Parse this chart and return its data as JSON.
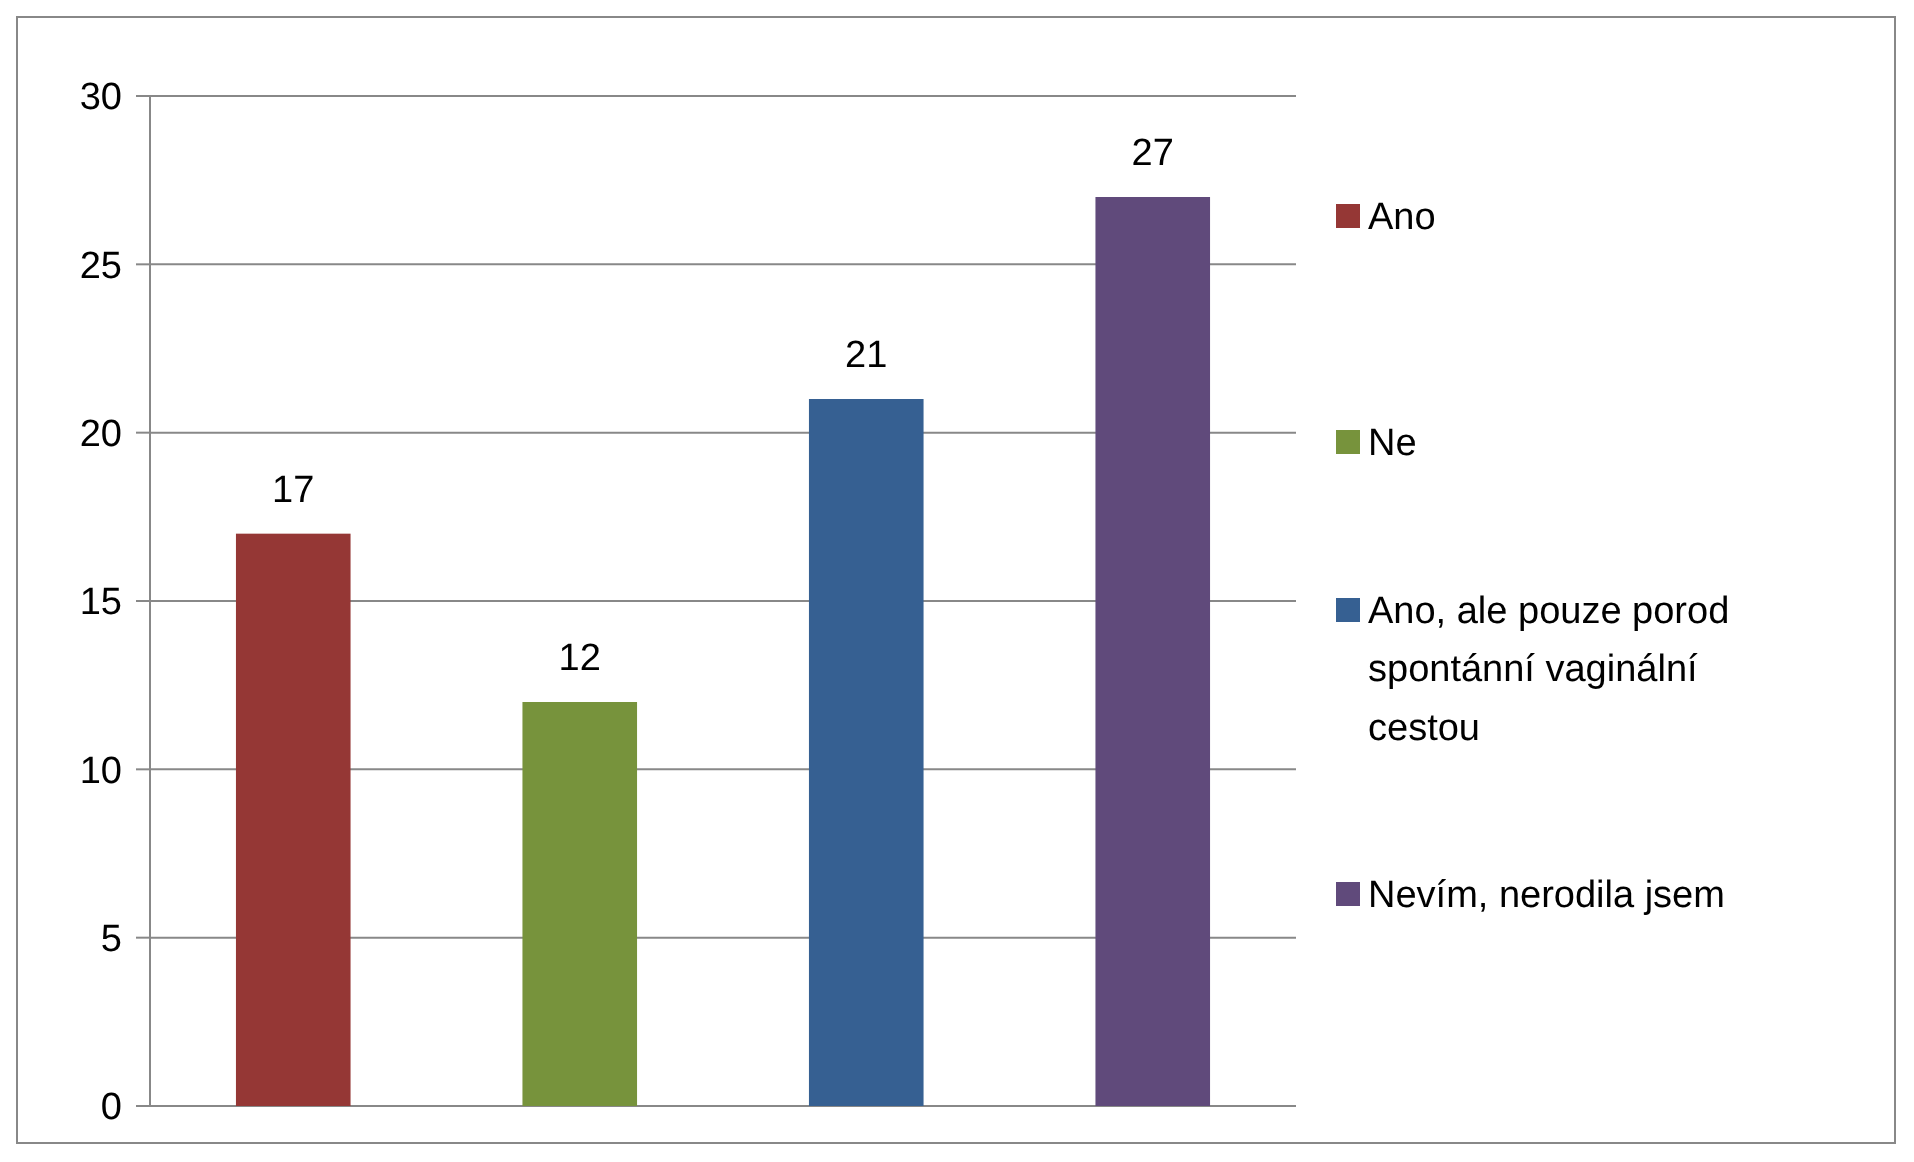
{
  "chart_data": {
    "type": "bar",
    "categories": [
      null,
      null,
      null,
      null
    ],
    "series": [
      {
        "name": "Ano",
        "color": "#953735",
        "values": [
          17,
          null,
          null,
          null
        ]
      },
      {
        "name": "Ne",
        "color": "#77933c",
        "values": [
          null,
          12,
          null,
          null
        ]
      },
      {
        "name": "Ano, ale pouze porod spontánní vaginální cestou",
        "color": "#366092",
        "values": [
          null,
          null,
          21,
          null
        ]
      },
      {
        "name": "Nevím, nerodila jsem",
        "color": "#604a7b",
        "values": [
          null,
          null,
          null,
          27
        ]
      }
    ],
    "ylim": [
      0,
      30
    ],
    "yticks": [
      0,
      5,
      10,
      15,
      20,
      25,
      30
    ],
    "grid": "y",
    "legend": "right",
    "data_labels": true
  }
}
